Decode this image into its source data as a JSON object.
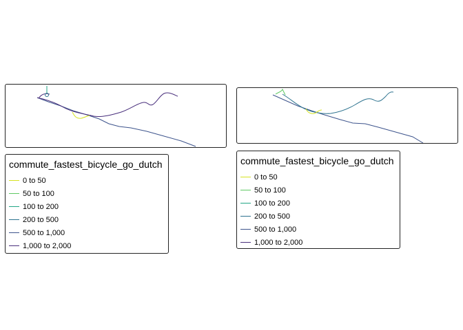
{
  "palette": {
    "0 to 50": "#d6e21f",
    "50 to 100": "#5ec962",
    "100 to 200": "#21a585",
    "200 to 500": "#2c728e",
    "500 to 1,000": "#3b528b",
    "1,000 to 2,000": "#472d7b"
  },
  "maps": [
    {
      "legend": {
        "title": "commute_fastest_bicycle_go_dutch",
        "items": [
          {
            "label": "0 to 50",
            "color": "#d6e21f"
          },
          {
            "label": "50 to 100",
            "color": "#5ec962"
          },
          {
            "label": "100 to 200",
            "color": "#21a585"
          },
          {
            "label": "200 to 500",
            "color": "#2c728e"
          },
          {
            "label": "500 to 1,000",
            "color": "#3b528b"
          },
          {
            "label": "1,000 to 2,000",
            "color": "#472d7b"
          }
        ]
      }
    },
    {
      "legend": {
        "title": "commute_fastest_bicycle_go_dutch",
        "items": [
          {
            "label": "0 to 50",
            "color": "#d6e21f"
          },
          {
            "label": "50 to 100",
            "color": "#5ec962"
          },
          {
            "label": "100 to 200",
            "color": "#21a585"
          },
          {
            "label": "200 to 500",
            "color": "#2c728e"
          },
          {
            "label": "500 to 1,000",
            "color": "#3b528b"
          },
          {
            "label": "1,000 to 2,000",
            "color": "#472d7b"
          }
        ]
      }
    }
  ]
}
